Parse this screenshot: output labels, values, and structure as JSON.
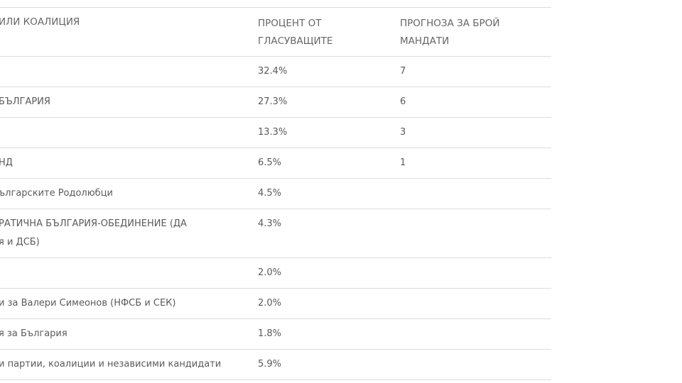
{
  "table": {
    "headers": [
      "или коалиция",
      "ПРОЦЕНТ ОТ",
      "ГЛАСУВАЩИТЕ",
      "ПРОГНОЗА ЗА БРОЙ",
      "МАНДАТИ"
    ],
    "rows": [
      {
        "party": "",
        "party_line2": "",
        "percent": "32.4%",
        "mandates": "7"
      },
      {
        "party": "БЪЛГАРИЯ",
        "party_line2": "",
        "percent": "27.3%",
        "mandates": "6"
      },
      {
        "party": "",
        "party_line2": "",
        "percent": "13.3%",
        "mandates": "3"
      },
      {
        "party": "НД",
        "party_line2": "",
        "percent": "6.5%",
        "mandates": "1"
      },
      {
        "party": "ългарските Родолюбци",
        "party_line2": "",
        "percent": "4.5%",
        "mandates": ""
      },
      {
        "party": "РАТИЧНА БЪЛГАРИЯ-ОБЕДИНЕНИЕ (ДА",
        "party_line2": "я и ДСБ)",
        "percent": "4.3%",
        "mandates": ""
      },
      {
        "party": "",
        "party_line2": "",
        "percent": "2.0%",
        "mandates": ""
      },
      {
        "party": "и за Валери Симеонов (НФСБ и СЕК)",
        "party_line2": "",
        "percent": "2.0%",
        "mandates": ""
      },
      {
        "party": "я за България",
        "party_line2": "",
        "percent": "1.8%",
        "mandates": ""
      },
      {
        "party": "и партии, коалиции и независими кандидати",
        "party_line2": "",
        "percent": "5.9%",
        "mandates": ""
      }
    ]
  }
}
